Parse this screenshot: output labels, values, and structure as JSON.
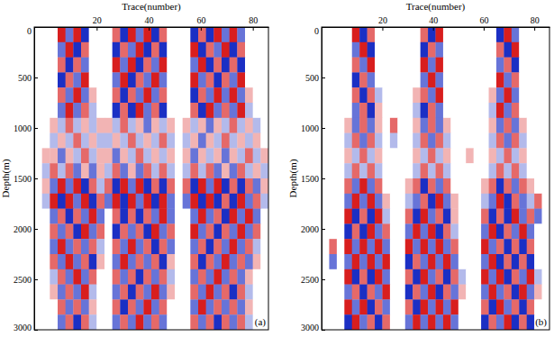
{
  "chart_data": [
    {
      "type": "heatmap",
      "x_label": "Trace(number)",
      "y_label": "Depth(m)",
      "annotation": "(a)",
      "xlim": [
        -4,
        86
      ],
      "xticks": [
        20,
        40,
        60,
        80
      ],
      "ylim": [
        0,
        3000
      ],
      "yticks": [
        0,
        500,
        1000,
        1500,
        2000,
        2500,
        3000
      ],
      "zlim": [
        -3,
        3
      ],
      "x_bins": [
        -4,
        -1,
        2,
        5,
        8,
        11,
        14,
        17,
        20,
        23,
        26,
        29,
        32,
        35,
        38,
        41,
        44,
        47,
        50,
        53,
        56,
        59,
        62,
        65,
        68,
        71,
        74,
        77,
        80,
        83,
        86
      ],
      "y_bins": [
        0,
        150,
        300,
        450,
        600,
        750,
        900,
        1050,
        1200,
        1350,
        1500,
        1650,
        1800,
        1950,
        2100,
        2250,
        2400,
        2550,
        2700,
        2850,
        3000
      ],
      "cells": [
        [
          0,
          0,
          0,
          3,
          -2,
          3,
          -3,
          0,
          0,
          0,
          2,
          -3,
          3,
          -2,
          3,
          -3,
          2,
          0,
          0,
          0,
          -3,
          2,
          -3,
          3,
          -2,
          3,
          -2,
          0,
          0,
          0
        ],
        [
          0,
          0,
          0,
          -2,
          3,
          -3,
          2,
          0,
          0,
          0,
          -3,
          2,
          -2,
          3,
          -3,
          2,
          -3,
          0,
          0,
          0,
          3,
          -3,
          2,
          -2,
          3,
          -3,
          2,
          0,
          0,
          0
        ],
        [
          0,
          0,
          0,
          2,
          -3,
          2,
          -2,
          0,
          0,
          0,
          3,
          -2,
          3,
          -3,
          2,
          -2,
          3,
          0,
          0,
          0,
          -2,
          3,
          -3,
          2,
          -3,
          2,
          -3,
          0,
          0,
          0
        ],
        [
          0,
          0,
          0,
          -3,
          2,
          -2,
          3,
          0,
          0,
          0,
          -2,
          3,
          -3,
          2,
          -2,
          3,
          -2,
          0,
          0,
          0,
          3,
          -2,
          2,
          -3,
          2,
          -2,
          3,
          0,
          0,
          0
        ],
        [
          0,
          0,
          0,
          2,
          -2,
          3,
          -2,
          1,
          0,
          0,
          2,
          -3,
          2,
          -2,
          3,
          -2,
          2,
          0,
          0,
          0,
          -3,
          2,
          -2,
          3,
          -2,
          3,
          -2,
          1,
          0,
          0
        ],
        [
          0,
          0,
          0,
          -2,
          3,
          -2,
          2,
          -1,
          0,
          0,
          -3,
          2,
          -3,
          3,
          -2,
          2,
          -3,
          0,
          0,
          0,
          2,
          -3,
          3,
          -2,
          2,
          -2,
          3,
          -1,
          0,
          0
        ],
        [
          0,
          0,
          1,
          -1,
          2,
          -1,
          1,
          -1,
          1,
          1,
          -1,
          2,
          -1,
          1,
          -2,
          1,
          -1,
          1,
          0,
          1,
          -1,
          1,
          -2,
          1,
          -1,
          2,
          -1,
          1,
          -1,
          0
        ],
        [
          0,
          0,
          -1,
          1,
          -1,
          2,
          -1,
          1,
          -1,
          -1,
          1,
          -1,
          2,
          -1,
          1,
          -1,
          2,
          -1,
          0,
          -1,
          1,
          -2,
          1,
          -1,
          2,
          -1,
          1,
          -1,
          1,
          0
        ],
        [
          0,
          1,
          1,
          -2,
          1,
          -1,
          2,
          -1,
          1,
          1,
          -2,
          1,
          -1,
          2,
          -1,
          1,
          -1,
          1,
          0,
          1,
          -2,
          1,
          -1,
          1,
          -2,
          1,
          -1,
          2,
          -1,
          1
        ],
        [
          0,
          -1,
          2,
          -1,
          2,
          -2,
          1,
          -2,
          1,
          -1,
          2,
          -2,
          1,
          -2,
          2,
          -1,
          2,
          -1,
          0,
          -1,
          2,
          -1,
          2,
          -2,
          1,
          -2,
          2,
          -1,
          1,
          -1
        ],
        [
          0,
          1,
          -2,
          3,
          -2,
          3,
          -3,
          2,
          -1,
          2,
          -3,
          3,
          -2,
          3,
          -3,
          2,
          -3,
          2,
          0,
          2,
          -3,
          3,
          -2,
          3,
          -3,
          2,
          -3,
          2,
          -2,
          1
        ],
        [
          0,
          -1,
          3,
          -3,
          3,
          -2,
          3,
          -3,
          2,
          -2,
          3,
          -3,
          3,
          -2,
          3,
          -3,
          3,
          -2,
          0,
          -2,
          3,
          -3,
          3,
          -3,
          2,
          -3,
          3,
          -2,
          2,
          -1
        ],
        [
          0,
          0,
          -2,
          2,
          -3,
          2,
          -2,
          3,
          -2,
          0,
          2,
          -3,
          2,
          -3,
          2,
          -2,
          3,
          -2,
          0,
          0,
          -2,
          3,
          -2,
          2,
          -3,
          3,
          -2,
          3,
          -2,
          0
        ],
        [
          0,
          0,
          2,
          -2,
          2,
          -3,
          3,
          -2,
          2,
          0,
          -3,
          2,
          -2,
          2,
          -3,
          3,
          -2,
          2,
          0,
          0,
          3,
          -2,
          2,
          -3,
          2,
          -2,
          3,
          -2,
          2,
          0
        ],
        [
          0,
          0,
          -2,
          3,
          -2,
          2,
          -2,
          2,
          -1,
          0,
          2,
          -2,
          3,
          -2,
          2,
          -3,
          2,
          -2,
          0,
          0,
          -2,
          2,
          -3,
          2,
          -2,
          3,
          -2,
          2,
          -1,
          0
        ],
        [
          0,
          0,
          2,
          -2,
          3,
          -2,
          2,
          -3,
          1,
          0,
          -2,
          3,
          -2,
          2,
          -2,
          2,
          -3,
          1,
          0,
          0,
          2,
          -3,
          2,
          -2,
          3,
          -2,
          2,
          -2,
          1,
          0
        ],
        [
          0,
          0,
          -1,
          2,
          -2,
          3,
          -2,
          2,
          0,
          0,
          2,
          -2,
          2,
          -3,
          2,
          -2,
          2,
          -1,
          0,
          0,
          -2,
          2,
          -2,
          3,
          -2,
          2,
          -2,
          1,
          0,
          0
        ],
        [
          0,
          0,
          1,
          -2,
          2,
          -2,
          3,
          -1,
          0,
          0,
          -2,
          2,
          -3,
          2,
          -2,
          3,
          -2,
          1,
          0,
          0,
          2,
          -2,
          3,
          -2,
          2,
          -3,
          2,
          -1,
          0,
          0
        ],
        [
          0,
          0,
          0,
          2,
          -2,
          2,
          -2,
          1,
          0,
          0,
          2,
          -3,
          2,
          -2,
          3,
          -2,
          2,
          0,
          0,
          0,
          -2,
          3,
          -2,
          2,
          -2,
          2,
          -2,
          1,
          0,
          0
        ],
        [
          0,
          0,
          0,
          -2,
          2,
          -3,
          2,
          -1,
          0,
          0,
          -2,
          2,
          -2,
          3,
          -2,
          2,
          -2,
          0,
          0,
          0,
          2,
          -2,
          2,
          -3,
          2,
          -2,
          2,
          -1,
          0,
          0
        ]
      ]
    },
    {
      "type": "heatmap",
      "x_label": "Trace(number)",
      "y_label": "Depth(m)",
      "annotation": "(b)",
      "xlim": [
        -4,
        86
      ],
      "xticks": [
        20,
        40,
        60,
        80
      ],
      "ylim": [
        0,
        3000
      ],
      "yticks": [
        0,
        500,
        1000,
        1500,
        2000,
        2500,
        3000
      ],
      "zlim": [
        -3,
        3
      ],
      "x_bins": [
        -4,
        -1,
        2,
        5,
        8,
        11,
        14,
        17,
        20,
        23,
        26,
        29,
        32,
        35,
        38,
        41,
        44,
        47,
        50,
        53,
        56,
        59,
        62,
        65,
        68,
        71,
        74,
        77,
        80,
        83,
        86
      ],
      "y_bins": [
        0,
        150,
        300,
        450,
        600,
        750,
        900,
        1050,
        1200,
        1350,
        1500,
        1650,
        1800,
        1950,
        2100,
        2250,
        2400,
        2550,
        2700,
        2850,
        3000
      ],
      "cells": [
        [
          0,
          0,
          0,
          0,
          3,
          -3,
          2,
          0,
          0,
          0,
          0,
          0,
          0,
          2,
          -3,
          3,
          0,
          0,
          0,
          0,
          0,
          0,
          0,
          -3,
          3,
          -2,
          0,
          0,
          0,
          0
        ],
        [
          0,
          0,
          0,
          0,
          -2,
          3,
          -3,
          0,
          0,
          0,
          0,
          0,
          0,
          -3,
          2,
          -2,
          0,
          0,
          0,
          0,
          0,
          0,
          0,
          2,
          -3,
          3,
          0,
          0,
          0,
          0
        ],
        [
          0,
          0,
          0,
          0,
          2,
          -2,
          3,
          0,
          0,
          0,
          0,
          0,
          0,
          3,
          -2,
          3,
          0,
          0,
          0,
          0,
          0,
          0,
          0,
          -2,
          2,
          -3,
          0,
          0,
          0,
          0
        ],
        [
          0,
          0,
          0,
          0,
          -3,
          2,
          -2,
          0,
          0,
          0,
          0,
          0,
          0,
          -2,
          3,
          -2,
          0,
          0,
          0,
          0,
          0,
          0,
          0,
          3,
          -2,
          2,
          0,
          0,
          0,
          0
        ],
        [
          0,
          0,
          0,
          0,
          2,
          -3,
          2,
          -1,
          0,
          0,
          0,
          0,
          1,
          2,
          -2,
          3,
          0,
          0,
          0,
          0,
          0,
          0,
          1,
          -2,
          3,
          -2,
          0,
          0,
          0,
          0
        ],
        [
          0,
          0,
          0,
          0,
          -2,
          2,
          -3,
          1,
          0,
          0,
          0,
          0,
          -1,
          -3,
          2,
          -2,
          0,
          0,
          0,
          0,
          0,
          0,
          -1,
          3,
          -2,
          2,
          0,
          0,
          0,
          0
        ],
        [
          0,
          0,
          0,
          1,
          -2,
          2,
          -2,
          1,
          0,
          2,
          0,
          0,
          1,
          -2,
          2,
          -2,
          1,
          0,
          0,
          0,
          0,
          0,
          1,
          -2,
          2,
          -2,
          1,
          0,
          0,
          0
        ],
        [
          0,
          0,
          0,
          -1,
          2,
          -2,
          2,
          -1,
          0,
          -1,
          0,
          0,
          -1,
          2,
          -2,
          2,
          -1,
          0,
          0,
          0,
          0,
          0,
          -1,
          2,
          -2,
          2,
          -1,
          0,
          0,
          0
        ],
        [
          0,
          0,
          0,
          1,
          -1,
          2,
          -1,
          1,
          0,
          0,
          0,
          0,
          1,
          -1,
          2,
          -1,
          1,
          0,
          0,
          1,
          0,
          0,
          1,
          -1,
          2,
          -1,
          1,
          0,
          0,
          0
        ],
        [
          0,
          0,
          0,
          -1,
          2,
          -1,
          2,
          -1,
          0,
          0,
          0,
          0,
          -1,
          2,
          -1,
          2,
          -1,
          0,
          0,
          0,
          0,
          0,
          -1,
          2,
          -1,
          2,
          -1,
          0,
          0,
          0
        ],
        [
          0,
          0,
          0,
          2,
          -2,
          3,
          -2,
          2,
          0,
          0,
          0,
          1,
          2,
          -3,
          2,
          -2,
          2,
          0,
          0,
          0,
          0,
          1,
          2,
          -3,
          2,
          -2,
          2,
          1,
          0,
          0
        ],
        [
          0,
          0,
          0,
          -2,
          3,
          -2,
          3,
          -2,
          1,
          0,
          0,
          -1,
          -2,
          2,
          -3,
          3,
          -2,
          1,
          0,
          0,
          0,
          -1,
          -2,
          3,
          -3,
          2,
          -2,
          -1,
          2,
          0
        ],
        [
          0,
          0,
          0,
          3,
          -3,
          2,
          -3,
          3,
          -1,
          0,
          0,
          2,
          -3,
          3,
          -2,
          2,
          -3,
          1,
          0,
          0,
          0,
          2,
          -3,
          2,
          -3,
          3,
          -2,
          2,
          -2,
          0
        ],
        [
          0,
          0,
          0,
          -3,
          2,
          -3,
          3,
          -2,
          2,
          0,
          0,
          -2,
          3,
          -2,
          3,
          -3,
          2,
          -1,
          0,
          0,
          0,
          -2,
          3,
          -3,
          2,
          -2,
          3,
          -2,
          0,
          0
        ],
        [
          0,
          2,
          0,
          3,
          -2,
          3,
          -2,
          3,
          -2,
          0,
          0,
          3,
          -2,
          3,
          -2,
          3,
          -2,
          2,
          0,
          0,
          0,
          3,
          -2,
          2,
          -3,
          2,
          -3,
          2,
          0,
          0
        ],
        [
          0,
          -2,
          0,
          -2,
          3,
          -2,
          3,
          -2,
          3,
          0,
          0,
          -3,
          2,
          -2,
          3,
          -2,
          3,
          -2,
          0,
          0,
          0,
          -2,
          3,
          -3,
          2,
          -3,
          2,
          -3,
          0,
          0
        ],
        [
          0,
          0,
          0,
          3,
          -3,
          2,
          -3,
          3,
          -2,
          0,
          0,
          2,
          -3,
          3,
          -2,
          2,
          -3,
          2,
          -1,
          0,
          0,
          3,
          -2,
          3,
          -3,
          2,
          -2,
          3,
          -1,
          0
        ],
        [
          0,
          0,
          0,
          -2,
          2,
          -3,
          2,
          -2,
          3,
          0,
          0,
          -3,
          2,
          -2,
          3,
          -3,
          2,
          -2,
          1,
          0,
          0,
          -2,
          3,
          -2,
          2,
          -3,
          3,
          -2,
          1,
          0
        ],
        [
          0,
          0,
          0,
          3,
          -2,
          3,
          -3,
          2,
          -2,
          0,
          0,
          2,
          -3,
          3,
          -2,
          3,
          -2,
          3,
          0,
          0,
          0,
          2,
          -3,
          3,
          -2,
          2,
          -3,
          2,
          0,
          0
        ],
        [
          0,
          0,
          0,
          -3,
          3,
          -2,
          2,
          -3,
          2,
          0,
          0,
          -2,
          3,
          -2,
          3,
          -2,
          3,
          -2,
          0,
          0,
          0,
          -3,
          2,
          -2,
          3,
          -3,
          2,
          -3,
          0,
          0
        ]
      ]
    }
  ]
}
